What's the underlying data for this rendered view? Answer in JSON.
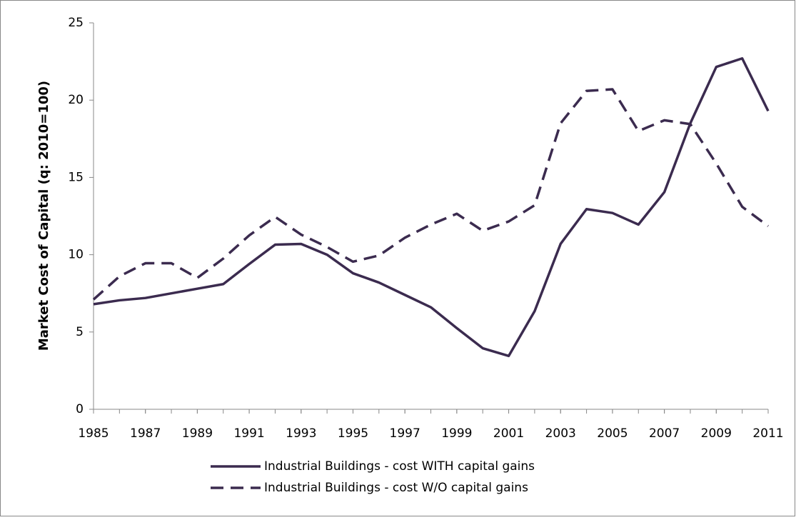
{
  "chart_data": {
    "type": "line",
    "ylabel": "Market Cost of Capital (q: 2010=100)",
    "x": [
      1985,
      1986,
      1987,
      1988,
      1989,
      1990,
      1991,
      1992,
      1993,
      1994,
      1995,
      1996,
      1997,
      1998,
      1999,
      2000,
      2001,
      2002,
      2003,
      2004,
      2005,
      2006,
      2007,
      2008,
      2009,
      2010,
      2011
    ],
    "series": [
      {
        "name": "Industrial Buildings - cost WITH capital gains",
        "color": "#3b2b4f",
        "dash": "solid",
        "values": [
          6.8,
          7.05,
          7.2,
          7.5,
          7.8,
          8.1,
          9.4,
          10.65,
          10.7,
          10.0,
          8.8,
          8.2,
          7.4,
          6.6,
          5.25,
          3.95,
          3.45,
          6.35,
          10.7,
          12.95,
          12.7,
          11.95,
          14.05,
          18.5,
          22.15,
          22.7,
          19.3
        ]
      },
      {
        "name": "Industrial Buildings - cost W/O capital gains",
        "color": "#3b2b4f",
        "dash": "dashed",
        "values": [
          7.1,
          8.6,
          9.45,
          9.45,
          8.5,
          9.75,
          11.25,
          12.45,
          11.3,
          10.5,
          9.55,
          9.95,
          11.1,
          11.95,
          12.65,
          11.55,
          12.15,
          13.2,
          18.5,
          20.6,
          20.7,
          18.0,
          18.7,
          18.45,
          15.9,
          13.1,
          11.85
        ]
      }
    ],
    "xlim": [
      1985,
      2011
    ],
    "xticks": [
      1985,
      1987,
      1989,
      1991,
      1993,
      1995,
      1997,
      1999,
      2001,
      2003,
      2005,
      2007,
      2009,
      2011
    ],
    "ylim": [
      0,
      25
    ],
    "yticks": [
      0,
      5,
      10,
      15,
      20,
      25
    ],
    "grid": false,
    "legend": "bottom"
  }
}
